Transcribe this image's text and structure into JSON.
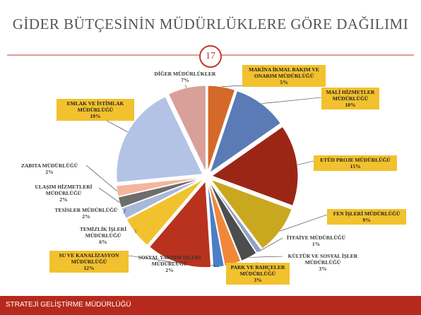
{
  "chart_data": {
    "type": "pie",
    "title": "GİDER BÜTÇESİNİN MÜDÜRLÜKLERE GÖRE DAĞILIMI",
    "categories": [
      "MAKİNA İKMAL BAKIM VE ONARIM MÜDÜRLÜĞÜ",
      "MALİ HİZMETLER MÜDÜRLÜĞÜ",
      "ETÜD PROJE MÜDÜRLÜĞÜ",
      "FEN İŞLERİ MÜDÜRLÜĞÜ",
      "İTFAİYE MÜDÜRLÜĞÜ",
      "KÜLTÜR VE SOSYAL İŞLER MÜDÜRLÜĞÜ",
      "PARK VE BAHÇELER MÜDÜRLÜĞÜ",
      "SOSYAL YARDIM İŞLERİ MÜDÜRLÜĞÜ",
      "SU VE KANALİZASYON MÜDÜRLÜĞÜ",
      "TEMİZLİK İŞLERİ MÜDÜRLÜĞÜ",
      "TESİSLER MÜDÜRLÜĞÜ",
      "ULAŞIM HİZMETLERİ MÜDÜRLÜĞÜ",
      "ZABITA MÜDÜRLÜĞÜ",
      "EMLAK VE İSTİMLAK MÜDÜRLÜĞÜ",
      "DİĞER MÜDÜRLÜKLER"
    ],
    "values": [
      5,
      10,
      15,
      9,
      1,
      3,
      3,
      2,
      12,
      6,
      2,
      2,
      2,
      19,
      7
    ],
    "value_labels": [
      "5%",
      "10%",
      "15%",
      "9%",
      "1%",
      "3%",
      "3%",
      "2%",
      "12%",
      "6%",
      "2%",
      "2%",
      "2%",
      "19%",
      "7%"
    ],
    "colors": [
      "#d4692a",
      "#5a7bb5",
      "#9c2615",
      "#c9a820",
      "#8fa1c6",
      "#4d4d4d",
      "#f0883a",
      "#4a7fc8",
      "#b8321e",
      "#f2c12e",
      "#a8b8d8",
      "#6d6d6d",
      "#f5b59c",
      "#b3c3e6",
      "#d9a09a"
    ]
  },
  "page_number": "17",
  "footer": "STRATEJİ GELİŞTİRME MÜDÜRLÜĞÜ"
}
